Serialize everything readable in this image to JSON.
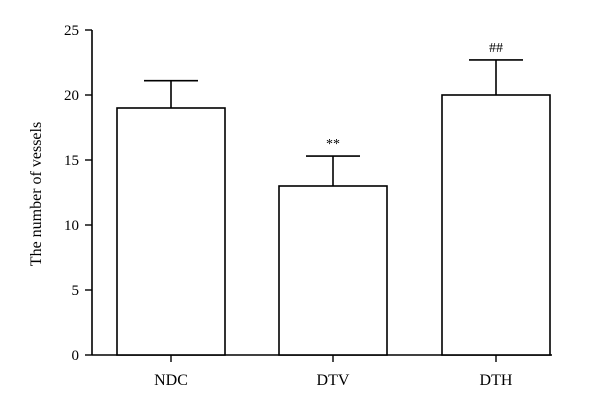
{
  "chart_data": {
    "type": "bar",
    "title": "",
    "xlabel": "",
    "ylabel": "The number of vessels",
    "categories": [
      "NDC",
      "DTV",
      "DTH"
    ],
    "values": [
      19,
      13,
      20
    ],
    "errors": [
      2.1,
      2.3,
      2.7
    ],
    "annotations": [
      "",
      "**",
      "##"
    ],
    "ylim": [
      0,
      25
    ],
    "yticks": [
      0,
      5,
      10,
      15,
      20,
      25
    ],
    "grid": false,
    "bar_fill": "#ffffff",
    "stroke_color": "#000000"
  }
}
